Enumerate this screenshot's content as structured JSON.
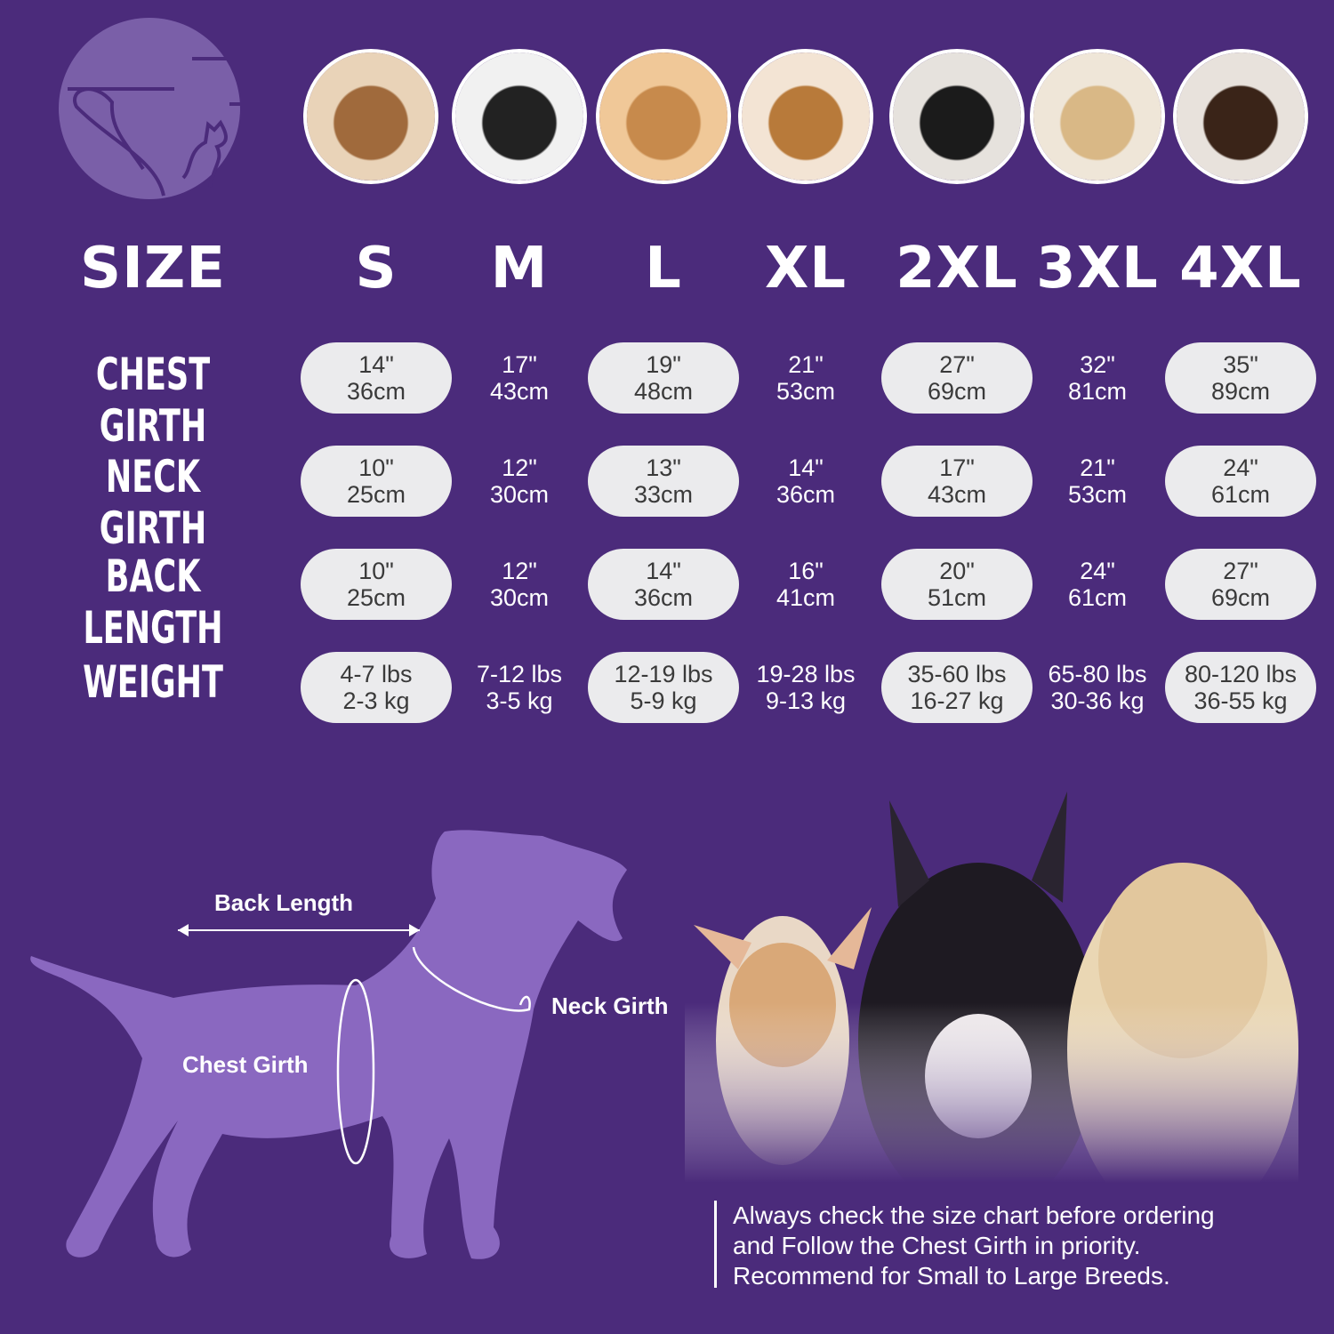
{
  "colors": {
    "background": "#4b2b7b",
    "pill": "#ebebed",
    "silhouette": "#8a68c0",
    "logo": "#7a5fa8"
  },
  "logo": {
    "icon": "dog-and-cat-logo"
  },
  "photos": [
    "shih-tzu",
    "boston-terrier",
    "cocker-spaniel",
    "beagle",
    "border-collie",
    "labrador",
    "doberman"
  ],
  "header": {
    "label": "SIZE",
    "sizes": [
      "S",
      "M",
      "L",
      "XL",
      "2XL",
      "3XL",
      "4XL"
    ]
  },
  "rows": [
    {
      "label": "CHEST GIRTH",
      "values": [
        [
          "14\"",
          "36cm"
        ],
        [
          "17\"",
          "43cm"
        ],
        [
          "19\"",
          "48cm"
        ],
        [
          "21\"",
          "53cm"
        ],
        [
          "27\"",
          "69cm"
        ],
        [
          "32\"",
          "81cm"
        ],
        [
          "35\"",
          "89cm"
        ]
      ]
    },
    {
      "label": "NECK GIRTH",
      "values": [
        [
          "10\"",
          "25cm"
        ],
        [
          "12\"",
          "30cm"
        ],
        [
          "13\"",
          "33cm"
        ],
        [
          "14\"",
          "36cm"
        ],
        [
          "17\"",
          "43cm"
        ],
        [
          "21\"",
          "53cm"
        ],
        [
          "24\"",
          "61cm"
        ]
      ]
    },
    {
      "label": "BACK LENGTH",
      "values": [
        [
          "10\"",
          "25cm"
        ],
        [
          "12\"",
          "30cm"
        ],
        [
          "14\"",
          "36cm"
        ],
        [
          "16\"",
          "41cm"
        ],
        [
          "20\"",
          "51cm"
        ],
        [
          "24\"",
          "61cm"
        ],
        [
          "27\"",
          "69cm"
        ]
      ]
    },
    {
      "label": "WEIGHT",
      "values": [
        [
          "4-7 lbs",
          "2-3 kg"
        ],
        [
          "7-12 lbs",
          "3-5 kg"
        ],
        [
          "12-19 lbs",
          "5-9 kg"
        ],
        [
          "19-28 lbs",
          "9-13 kg"
        ],
        [
          "35-60 lbs",
          "16-27 kg"
        ],
        [
          "65-80 lbs",
          "30-36 kg"
        ],
        [
          "80-120 lbs",
          "36-55 kg"
        ]
      ]
    }
  ],
  "diagram": {
    "back_length": "Back Length",
    "neck_girth": "Neck Girth",
    "chest_girth": "Chest Girth"
  },
  "note": [
    "Always check the size chart before ordering",
    "and Follow the Chest Girth in priority.",
    "Recommend for Small to Large Breeds."
  ]
}
